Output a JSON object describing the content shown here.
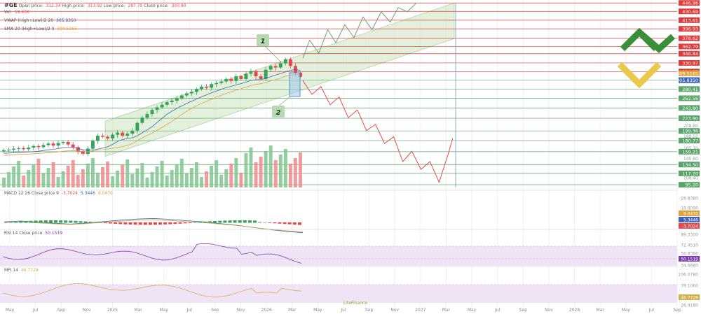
{
  "header": {
    "symbol": "#GE",
    "open_label": "Open price:",
    "open_value": "312.34",
    "high_label": "High price:",
    "high_value": "313.92",
    "low_label": "Low price:",
    "low_value": "297.75",
    "close_label": "Close price:",
    "close_value": "303.90",
    "vol_label": "Vol:",
    "vol_value": "19.43K",
    "vwap_label": "VWAP (High+Low)/2 20",
    "vwap_value": "305.8350",
    "sma_label": "SMA 20 (High+Low)/2 0",
    "sma_value": "309.5165"
  },
  "annotations": {
    "label1": "1",
    "label2": "2"
  },
  "macd": {
    "label": "MACD 12 26 Close price 9",
    "v1": "-3.7024",
    "v2": "5.3446",
    "v3": "9.0470"
  },
  "rsi": {
    "label": "RSI 14 Close price",
    "value": "50.1519"
  },
  "mfi": {
    "label": "MFI 14",
    "value": "46.7728"
  },
  "watermark": "LiteFinance",
  "colors": {
    "up": "#35a35a",
    "down": "#e5484d",
    "channel": "#cfe6c4",
    "level": "#e03b3b",
    "forecast_up": "#5b9b6b",
    "forecast_down": "#e03b3b",
    "vwap": "#3d63b8",
    "sma": "#e0a23c",
    "rsi": "#7c3aad",
    "mfi": "#d4b04a"
  },
  "chart_data": [
    {
      "type": "candlestick",
      "title": "#GE",
      "x_ticks": [
        "May",
        "Jul",
        "Sep",
        "Nov",
        "2025",
        "Mar",
        "May",
        "Jul",
        "Sep",
        "Nov",
        "2026",
        "Mar",
        "May",
        "Jul",
        "Sep",
        "Nov",
        "2027",
        "Mar",
        "May",
        "Jul",
        "Sep",
        "Nov",
        "2028",
        "Mar",
        "May",
        "Jul",
        "Sep"
      ],
      "y_levels": [
        446.96,
        430.69,
        413.61,
        396.93,
        378.62,
        362.79,
        348.84,
        330.97,
        314.27,
        297.51,
        280.41,
        262.56,
        243.8,
        223.9,
        199.36,
        180.77,
        159.21,
        134.3,
        117.2,
        95.2
      ],
      "y_ticks": [
        "208.90",
        "188.50",
        "165.70",
        "145.60",
        "108.40"
      ],
      "price_tags": [
        "309.5165",
        "305.8350"
      ],
      "ylim": [
        90,
        450
      ],
      "close_series": [
        162,
        163,
        165,
        166,
        164,
        167,
        170,
        168,
        172,
        175,
        171,
        176,
        178,
        173,
        168,
        160,
        155,
        165,
        180,
        190,
        188,
        185,
        192,
        196,
        190,
        194,
        200,
        215,
        225,
        232,
        240,
        245,
        250,
        255,
        258,
        262,
        268,
        272,
        275,
        280,
        285,
        283,
        290,
        292,
        295,
        300,
        296,
        305,
        300,
        310,
        315,
        305,
        300,
        318,
        325,
        322,
        330,
        338,
        325,
        312,
        304
      ],
      "forecast_up": [
        [
          304,
          340
        ],
        [
          310,
          375
        ],
        [
          318,
          350
        ],
        [
          326,
          395
        ],
        [
          333,
          370
        ],
        [
          341,
          405
        ],
        [
          349,
          380
        ],
        [
          357,
          420
        ],
        [
          365,
          395
        ],
        [
          373,
          430
        ],
        [
          381,
          410
        ],
        [
          388,
          438
        ],
        [
          396,
          430
        ],
        [
          404,
          447
        ]
      ],
      "forecast_down": [
        [
          304,
          297
        ],
        [
          312,
          270
        ],
        [
          320,
          285
        ],
        [
          328,
          250
        ],
        [
          336,
          265
        ],
        [
          344,
          225
        ],
        [
          352,
          240
        ],
        [
          360,
          200
        ],
        [
          368,
          212
        ],
        [
          376,
          175
        ],
        [
          384,
          188
        ],
        [
          392,
          140
        ],
        [
          400,
          160
        ],
        [
          408,
          125
        ],
        [
          416,
          140
        ],
        [
          424,
          100
        ],
        [
          432,
          155
        ],
        [
          436,
          185
        ]
      ],
      "channel": {
        "start": [
          0,
          218,
          150
        ],
        "end": [
          405,
          447,
          378
        ]
      }
    },
    {
      "type": "bar",
      "title": "Volume",
      "note": "volume histogram, relative heights"
    },
    {
      "type": "line",
      "title": "MACD 12 26 Close price 9",
      "series": [
        {
          "name": "-3.7024",
          "values": [
            0.2,
            0.5,
            0.1,
            -0.3,
            -0.6,
            -0.2,
            0.3,
            0.8,
            1.2,
            1.4,
            1.1,
            0.6,
            0.2,
            -0.4,
            -1.0,
            -1.8,
            -2.6,
            -3.2,
            -3.7
          ]
        }
      ],
      "y_ticks": [
        "28.8380",
        "18.9090",
        "9.0470",
        "5.3446",
        "-3.7024"
      ]
    },
    {
      "type": "line",
      "title": "RSI 14 Close price",
      "y_ticks": [
        "89.3300",
        "72.4510",
        "56.8380",
        "50.1519",
        "34.6680"
      ],
      "value": 50.1519
    },
    {
      "type": "line",
      "title": "MFI 14",
      "y_ticks": [
        "106.0780",
        "78.1060",
        "46.7728",
        "26.9180"
      ],
      "value": 46.7728
    }
  ]
}
